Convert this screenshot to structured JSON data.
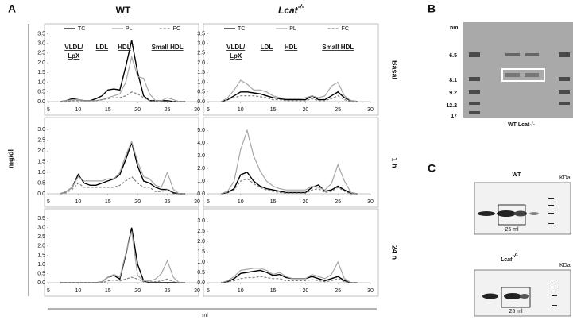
{
  "figure": {
    "panel_labels": [
      "A",
      "B",
      "C"
    ],
    "y_label": "mg/dl",
    "x_label": "ml",
    "row_labels": [
      "Basal",
      "1 h",
      "24 h"
    ],
    "column_titles": [
      {
        "text": "WT"
      },
      {
        "text": "Lcat",
        "sup": "-/-"
      }
    ]
  },
  "chart_data": [
    {
      "type": "line",
      "legend": true,
      "annotations": [
        "VLDL/",
        "LpX",
        "LDL",
        "HDL",
        "Small HDL"
      ],
      "x": [
        7,
        8,
        9,
        10,
        11,
        12,
        13,
        14,
        15,
        16,
        17,
        18,
        19,
        20,
        21,
        22,
        23,
        24,
        25,
        26,
        27,
        28
      ],
      "xlim": [
        5,
        30
      ],
      "xticks": [
        5,
        10,
        15,
        20,
        25,
        30
      ],
      "ylim": [
        0,
        3.6
      ],
      "yticks": [
        {
          "value": 0,
          "label": "0.0"
        },
        0.5,
        {
          "value": 1,
          "label": "1.0"
        },
        1.5,
        {
          "value": 2,
          "label": "2.0"
        },
        2.5,
        {
          "value": 3,
          "label": "3.0"
        },
        3.5
      ],
      "series": [
        {
          "name": "TC",
          "color": "#000000",
          "style": "solid",
          "values": [
            0,
            0.05,
            0.15,
            0.1,
            0.05,
            0.05,
            0.15,
            0.3,
            0.6,
            0.65,
            0.6,
            1.8,
            3.15,
            1.5,
            0.3,
            0.05,
            0.05,
            0.05,
            0.05,
            0,
            0,
            0
          ]
        },
        {
          "name": "PL",
          "color": "#a6a6a6",
          "style": "solid",
          "values": [
            0,
            0.05,
            0.1,
            0.1,
            0.05,
            0.05,
            0.05,
            0.1,
            0.2,
            0.3,
            0.4,
            1.0,
            2.3,
            1.3,
            1.2,
            0.4,
            0.05,
            0.05,
            0.2,
            0.1,
            0,
            0
          ]
        },
        {
          "name": "FC",
          "color": "#7f7f7f",
          "style": "dashed",
          "values": [
            0,
            0,
            0.05,
            0.05,
            0.05,
            0.05,
            0.05,
            0.1,
            0.15,
            0.2,
            0.2,
            0.3,
            0.5,
            0.4,
            0.2,
            0.05,
            0,
            0,
            0,
            0,
            0,
            0
          ]
        }
      ]
    },
    {
      "type": "line",
      "legend": true,
      "annotations": [
        "VLDL/",
        "LpX",
        "LDL",
        "HDL",
        "Small HDL"
      ],
      "x": [
        7,
        8,
        9,
        10,
        11,
        12,
        13,
        14,
        15,
        16,
        17,
        18,
        19,
        20,
        21,
        22,
        23,
        24,
        25,
        26,
        27,
        28
      ],
      "xlim": [
        5,
        30
      ],
      "xticks": [
        5,
        10,
        15,
        20,
        25,
        30
      ],
      "ylim": [
        0,
        3.6
      ],
      "yticks": [
        {
          "value": 0,
          "label": "0.0"
        },
        0.5,
        {
          "value": 1,
          "label": "1.0"
        },
        1.5,
        {
          "value": 2,
          "label": "2.0"
        },
        2.5,
        {
          "value": 3,
          "label": "3.0"
        },
        3.5
      ],
      "series": [
        {
          "name": "TC",
          "color": "#000000",
          "style": "solid",
          "values": [
            0,
            0.1,
            0.3,
            0.5,
            0.5,
            0.45,
            0.4,
            0.3,
            0.2,
            0.15,
            0.1,
            0.1,
            0.1,
            0.1,
            0.3,
            0.1,
            0.1,
            0.3,
            0.5,
            0.2,
            0.05,
            0
          ]
        },
        {
          "name": "PL",
          "color": "#a6a6a6",
          "style": "solid",
          "values": [
            0,
            0.2,
            0.6,
            1.1,
            0.9,
            0.6,
            0.6,
            0.5,
            0.3,
            0.2,
            0.15,
            0.15,
            0.15,
            0.2,
            0.3,
            0.2,
            0.3,
            0.8,
            1.0,
            0.3,
            0.05,
            0
          ]
        },
        {
          "name": "FC",
          "color": "#7f7f7f",
          "style": "dashed",
          "values": [
            0,
            0.1,
            0.2,
            0.3,
            0.3,
            0.3,
            0.25,
            0.2,
            0.1,
            0.1,
            0.05,
            0.05,
            0.05,
            0.05,
            0.15,
            0.05,
            0.05,
            0.15,
            0.3,
            0.1,
            0,
            0
          ]
        }
      ]
    },
    {
      "type": "line",
      "legend": false,
      "x": [
        7,
        8,
        9,
        10,
        11,
        12,
        13,
        14,
        15,
        16,
        17,
        18,
        19,
        20,
        21,
        22,
        23,
        24,
        25,
        26,
        27,
        28
      ],
      "xlim": [
        5,
        30
      ],
      "xticks": [
        5,
        10,
        15,
        20,
        25,
        30
      ],
      "ylim": [
        0,
        3.2
      ],
      "yticks": [
        {
          "value": 0,
          "label": "0.0"
        },
        0.5,
        {
          "value": 1,
          "label": "1.0"
        },
        1.5,
        {
          "value": 2,
          "label": "2.0"
        },
        2.5,
        {
          "value": 3,
          "label": "3.0"
        }
      ],
      "series": [
        {
          "name": "TC",
          "color": "#000000",
          "style": "solid",
          "values": [
            0,
            0.1,
            0.3,
            0.9,
            0.5,
            0.4,
            0.4,
            0.5,
            0.6,
            0.7,
            0.9,
            1.6,
            2.4,
            1.3,
            0.6,
            0.5,
            0.3,
            0.2,
            0.2,
            0.05,
            0,
            0
          ]
        },
        {
          "name": "PL",
          "color": "#a6a6a6",
          "style": "solid",
          "values": [
            0,
            0.1,
            0.3,
            0.8,
            0.6,
            0.6,
            0.6,
            0.6,
            0.7,
            0.7,
            1.0,
            1.8,
            2.45,
            1.5,
            0.8,
            0.7,
            0.4,
            0.3,
            1.0,
            0.2,
            0,
            0
          ]
        },
        {
          "name": "FC",
          "color": "#7f7f7f",
          "style": "dashed",
          "values": [
            0,
            0.05,
            0.2,
            0.5,
            0.3,
            0.3,
            0.3,
            0.3,
            0.3,
            0.3,
            0.4,
            0.6,
            0.8,
            0.5,
            0.3,
            0.3,
            0.1,
            0.1,
            0.2,
            0,
            0,
            0
          ]
        }
      ]
    },
    {
      "type": "line",
      "legend": false,
      "x": [
        7,
        8,
        9,
        10,
        11,
        12,
        13,
        14,
        15,
        16,
        17,
        18,
        19,
        20,
        21,
        22,
        23,
        24,
        25,
        26,
        27,
        28
      ],
      "xlim": [
        5,
        30
      ],
      "xticks": [
        5,
        10,
        15,
        20,
        25,
        30
      ],
      "ylim": [
        0,
        5.4
      ],
      "yticks": [
        {
          "value": 0,
          "label": "0.0"
        },
        {
          "value": 1,
          "label": "1.0"
        },
        {
          "value": 2,
          "label": "2.0"
        },
        {
          "value": 3,
          "label": "3.0"
        },
        {
          "value": 4,
          "label": "4.0"
        },
        {
          "value": 5,
          "label": "5.0"
        }
      ],
      "series": [
        {
          "name": "TC",
          "color": "#000000",
          "style": "solid",
          "values": [
            0,
            0.1,
            0.4,
            1.5,
            1.7,
            1.0,
            0.6,
            0.4,
            0.3,
            0.2,
            0.1,
            0.1,
            0.1,
            0.1,
            0.5,
            0.7,
            0.2,
            0.3,
            0.6,
            0.3,
            0.05,
            0
          ]
        },
        {
          "name": "PL",
          "color": "#a6a6a6",
          "style": "solid",
          "values": [
            0,
            0.2,
            1.0,
            3.5,
            5.0,
            3.0,
            1.8,
            1.0,
            0.6,
            0.4,
            0.3,
            0.3,
            0.3,
            0.3,
            0.6,
            0.5,
            0.3,
            0.8,
            2.3,
            1.0,
            0.1,
            0
          ]
        },
        {
          "name": "FC",
          "color": "#7f7f7f",
          "style": "dashed",
          "values": [
            0,
            0.1,
            0.3,
            1.0,
            1.2,
            0.8,
            0.5,
            0.3,
            0.2,
            0.1,
            0.05,
            0.05,
            0.05,
            0.05,
            0.3,
            0.4,
            0.1,
            0.2,
            0.5,
            0.2,
            0,
            0
          ]
        }
      ]
    },
    {
      "type": "line",
      "legend": false,
      "x": [
        7,
        8,
        9,
        10,
        11,
        12,
        13,
        14,
        15,
        16,
        17,
        18,
        19,
        20,
        21,
        22,
        23,
        24,
        25,
        26,
        27,
        28
      ],
      "xlim": [
        5,
        30
      ],
      "xticks": [
        5,
        10,
        15,
        20,
        25,
        30
      ],
      "ylim": [
        0,
        3.6
      ],
      "yticks": [
        {
          "value": 0,
          "label": "0.0"
        },
        0.5,
        {
          "value": 1,
          "label": "1.0"
        },
        1.5,
        {
          "value": 2,
          "label": "2.0"
        },
        2.5,
        {
          "value": 3,
          "label": "3.0"
        },
        3.5
      ],
      "series": [
        {
          "name": "TC",
          "color": "#000000",
          "style": "solid",
          "values": [
            0,
            0,
            0,
            0,
            0,
            0,
            0,
            0.05,
            0.3,
            0.4,
            0.2,
            1.5,
            3.0,
            1.0,
            0.1,
            0,
            0,
            0,
            0,
            0,
            0,
            0
          ]
        },
        {
          "name": "PL",
          "color": "#a6a6a6",
          "style": "solid",
          "values": [
            0,
            0,
            0,
            0,
            0,
            0,
            0,
            0.05,
            0.3,
            0.45,
            0.3,
            1.6,
            2.8,
            0.4,
            0.1,
            0.1,
            0.2,
            0.5,
            1.2,
            0.3,
            0,
            0
          ]
        },
        {
          "name": "FC",
          "color": "#7f7f7f",
          "style": "dashed",
          "values": [
            0,
            0,
            0,
            0,
            0,
            0,
            0,
            0,
            0.1,
            0.15,
            0.1,
            0.2,
            0.3,
            0.2,
            0.05,
            0.05,
            0.05,
            0.1,
            0.2,
            0.05,
            0,
            0
          ]
        }
      ]
    },
    {
      "type": "line",
      "legend": false,
      "x": [
        7,
        8,
        9,
        10,
        11,
        12,
        13,
        14,
        15,
        16,
        17,
        18,
        19,
        20,
        21,
        22,
        23,
        24,
        25,
        26,
        27,
        28
      ],
      "xlim": [
        5,
        30
      ],
      "xticks": [
        5,
        10,
        15,
        20,
        25,
        30
      ],
      "ylim": [
        0,
        3.2
      ],
      "yticks": [
        {
          "value": 0,
          "label": "0.0"
        },
        0.5,
        {
          "value": 1,
          "label": "1.0"
        },
        1.5,
        {
          "value": 2,
          "label": "2.0"
        },
        2.5,
        {
          "value": 3,
          "label": "3.0"
        }
      ],
      "series": [
        {
          "name": "TC",
          "color": "#000000",
          "style": "solid",
          "values": [
            0,
            0.05,
            0.2,
            0.45,
            0.5,
            0.55,
            0.6,
            0.5,
            0.35,
            0.4,
            0.25,
            0.2,
            0.2,
            0.2,
            0.3,
            0.2,
            0.1,
            0.2,
            0.3,
            0.1,
            0,
            0
          ]
        },
        {
          "name": "PL",
          "color": "#a6a6a6",
          "style": "solid",
          "values": [
            0,
            0.1,
            0.3,
            0.6,
            0.65,
            0.7,
            0.7,
            0.6,
            0.4,
            0.5,
            0.3,
            0.2,
            0.2,
            0.2,
            0.4,
            0.3,
            0.2,
            0.4,
            1.0,
            0.2,
            0,
            0
          ]
        },
        {
          "name": "FC",
          "color": "#7f7f7f",
          "style": "dashed",
          "values": [
            0,
            0.05,
            0.1,
            0.2,
            0.25,
            0.25,
            0.3,
            0.25,
            0.2,
            0.2,
            0.1,
            0.1,
            0.1,
            0.1,
            0.15,
            0.1,
            0.05,
            0.1,
            0.2,
            0.05,
            0,
            0
          ]
        }
      ]
    }
  ],
  "gel_b": {
    "unit": "nm",
    "sizes": [
      "6.5",
      "8.1",
      "9.2",
      "12.2",
      "17"
    ],
    "caption": "WT Lcat-/-"
  },
  "gel_c": [
    {
      "title": "WT",
      "unit": "KDa",
      "fraction": "25 ml"
    },
    {
      "title": "Lcat",
      "title_sup": "-/-",
      "unit": "KDa",
      "fraction": "25 ml"
    }
  ]
}
